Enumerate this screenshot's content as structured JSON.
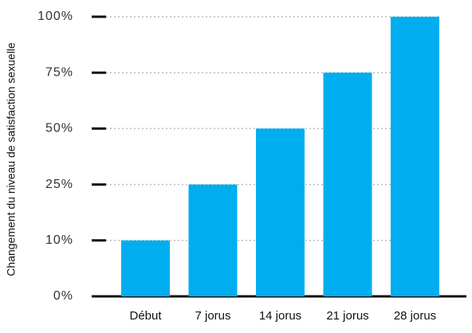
{
  "chart_data": {
    "type": "bar",
    "ylabel": "Changement du niveau de satisfaction sexuelle",
    "categories": [
      "Début",
      "7 jorus",
      "14 jorus",
      "21 jorus",
      "28 jorus"
    ],
    "values": [
      10,
      25,
      50,
      75,
      100
    ],
    "color": "#00aeef",
    "ylim": [
      0,
      100
    ],
    "yticks": [
      {
        "value": 0,
        "label": "0%"
      },
      {
        "value": 10,
        "label": "10%"
      },
      {
        "value": 25,
        "label": "25%"
      },
      {
        "value": 50,
        "label": "50%"
      },
      {
        "value": 75,
        "label": "75%"
      },
      {
        "value": 100,
        "label": "100%"
      }
    ],
    "grid": true
  }
}
